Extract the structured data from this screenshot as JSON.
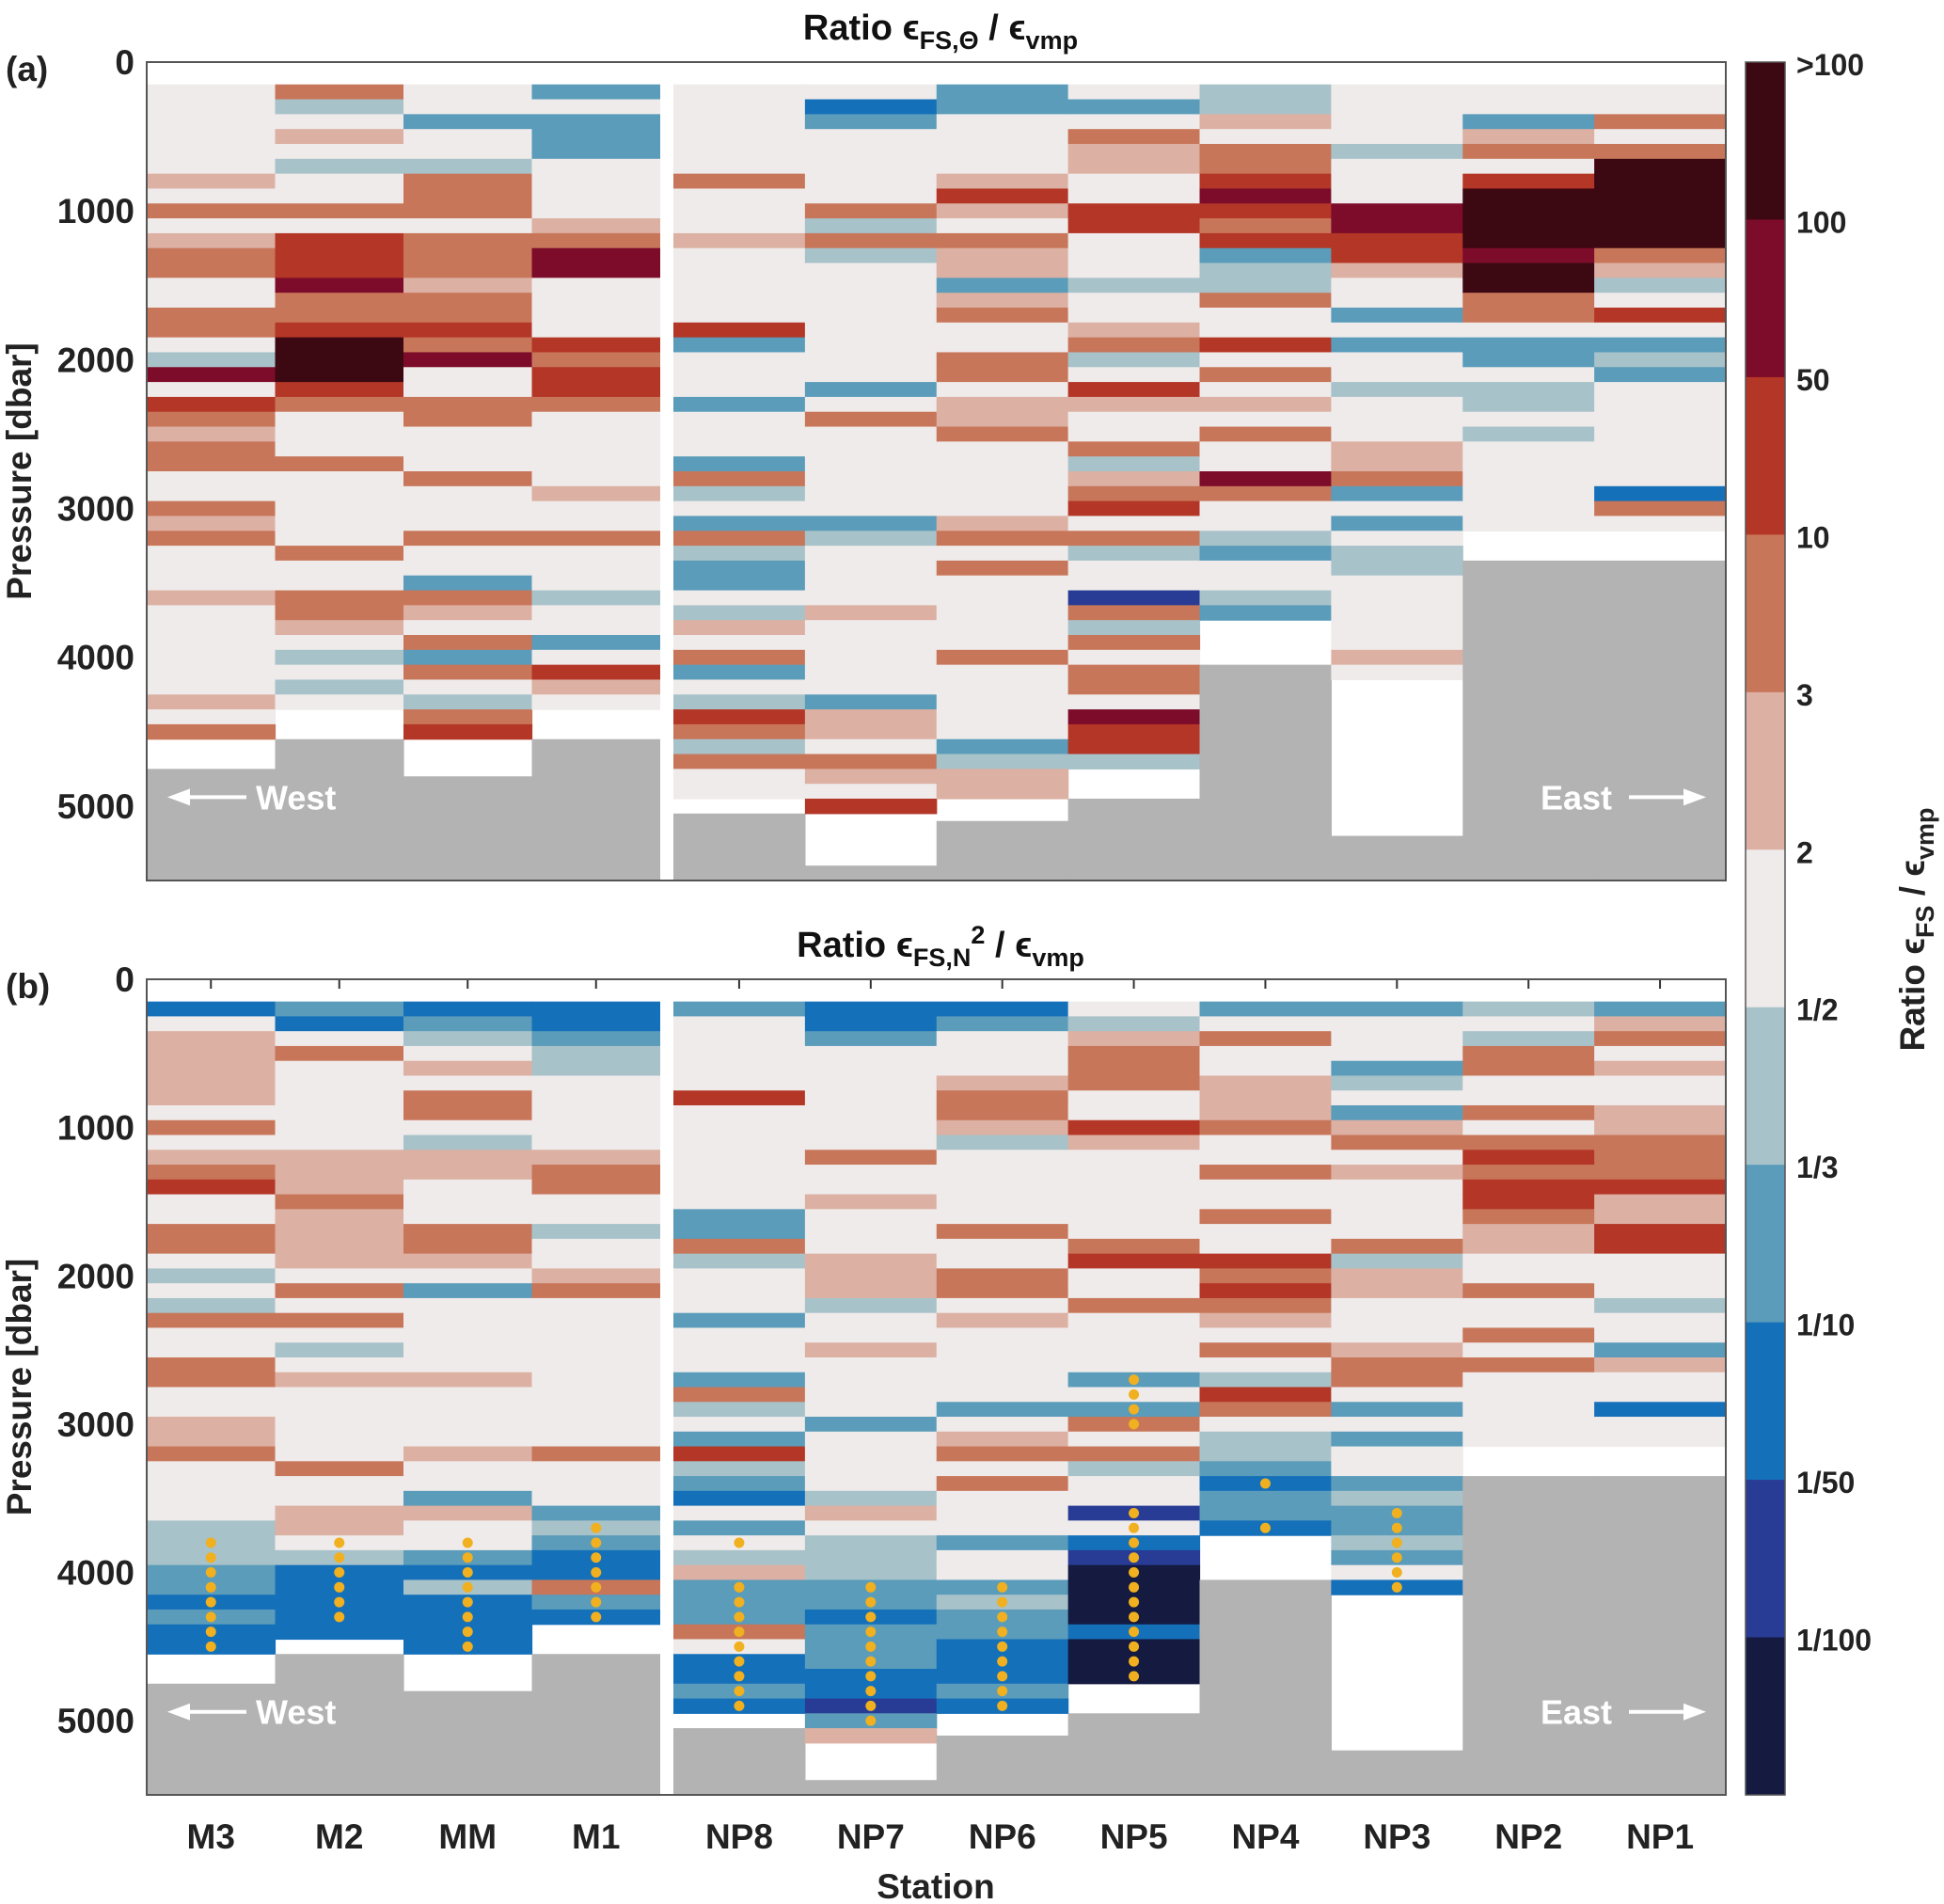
{
  "chart_data": [
    {
      "panel_label": "(a)",
      "title": {
        "prefix": "Ratio ",
        "eps": "ϵ",
        "sub": "FS,Θ",
        "sup": "",
        "slash": " / ",
        "eps2": "ϵ",
        "sub2": "vmp"
      },
      "type": "heatmap",
      "ylabel": "Pressure [dbar]",
      "ylim": [
        0,
        5500
      ],
      "yticks": [
        "0",
        "1000",
        "2000",
        "3000",
        "4000",
        "5000"
      ],
      "bin_start_dbar": 150,
      "bin_size_dbar": 100,
      "annotations": {
        "west": "West",
        "east": "East"
      },
      "stations": [
        {
          "name": "M3",
          "classes": "ffffffgfhfghhffhhfejfihghhffhghfffgffffffgfh",
          "seafloor_dbar": 4750,
          "dots_dbar": []
        },
        {
          "name": "M2",
          "classes": "hefgfeffhfiiijhhikkkihfffhfffffhffhhgfefef",
          "seafloor_dbar": 4550,
          "dots_dbar": []
        },
        {
          "name": "MM",
          "classes": "ffdffehhhfhhhghhihjffhhfffhfffhffdhgfhdhfehi",
          "seafloor_dbar": 4800,
          "dots_dbar": []
        },
        {
          "name": "M1",
          "classes": "dfdddffffghjjffffihiihfffffgffhfffeffdfigf",
          "seafloor_dbar": 4550,
          "dots_dbar": []
        },
        {
          "name": "NP8",
          "classes": "ffffffhfffgfffffidfffdfffdhefdheddfegfhdfeihehff",
          "seafloor_dbar": 5050,
          "dots_dbar": []
        },
        {
          "name": "NP7",
          "classes": "fcdfffffheheffffffffdfhffffffdeffffgfffffdggfhgfi",
          "seafloor_dbar": 5400,
          "dots_dbar": []
        },
        {
          "name": "NP6",
          "classes": "ddffffgigfhggdghffhhfgghfffffghfhfffffhfffffdegg",
          "seafloor_dbar": 5100,
          "dots_dbar": []
        },
        {
          "name": "NP5",
          "classes": "fdfhggffiifffeffghefigffheghifheffbhehfhhfjiie",
          "seafloor_dbar": 4950,
          "dots_dbar": []
        },
        {
          "name": "NP4",
          "classes": "eegfhhijihideehffifhfgfhffjhffedffed",
          "seafloor_dbar": 4050,
          "dots_dbar": []
        },
        {
          "name": "NP3",
          "classes": "ffffefffjjiigffdfdffefffgghdfdfeefffffgf",
          "seafloor_dbar": 5200,
          "dots_dbar": []
        },
        {
          "name": "NP2",
          "classes": "ffdghfikkkkjkkhhfddfeefeffffff",
          "seafloor_dbar": 3350,
          "dots_dbar": []
        },
        {
          "name": "NP1",
          "classes": "ffhfhkkkkkkhgefifdedfffffffchf",
          "seafloor_dbar": 3350,
          "dots_dbar": []
        }
      ]
    },
    {
      "panel_label": "(b)",
      "title": {
        "prefix": "Ratio ",
        "eps": "ϵ",
        "sub": "FS,N",
        "sup": "2",
        "slash": " / ",
        "eps2": "ϵ",
        "sub2": "vmp"
      },
      "type": "heatmap",
      "ylabel": "Pressure [dbar]",
      "xlabel": "Station",
      "ylim": [
        0,
        5500
      ],
      "yticks": [
        "0",
        "1000",
        "2000",
        "3000",
        "4000",
        "5000"
      ],
      "bin_start_dbar": 150,
      "bin_size_dbar": 100,
      "annotations": {
        "west": "West",
        "east": "East"
      },
      "stations": [
        {
          "name": "M3",
          "classes": "cfgggggfhfghiffhhfefehffhhffgghffffeeeddcdcc",
          "seafloor_dbar": 4750,
          "dots_dbar": [
            3800,
            3900,
            4000,
            4100,
            4200,
            4300,
            4400,
            4500
          ]
        },
        {
          "name": "M2",
          "classes": "dcfhffffffggghggggfhfhfefgfffffhffggfeccccc",
          "seafloor_dbar": 4550,
          "dots_dbar": [
            3800,
            3900,
            4000,
            4100,
            4200,
            4300
          ]
        },
        {
          "name": "MM",
          "classes": "cdefgfhhfeggfffhhgfdfffffgffffgffdgffdcecccc",
          "seafloor_dbar": 4800,
          "dots_dbar": [
            3800,
            3900,
            4000,
            4100,
            4200,
            4300,
            4400,
            4500
          ]
        },
        {
          "name": "M1",
          "classes": "ccdeefffffghhffeffghffffffffffhfffdedcchdc",
          "seafloor_dbar": 4550,
          "dots_dbar": [
            3700,
            3800,
            3900,
            4000,
            4100,
            4200,
            4300
          ]
        },
        {
          "name": "NP8",
          "classes": "dfffffifffffffddhefffdfffdhefdiedcfdfegdddhfccdc",
          "seafloor_dbar": 5050,
          "dots_dbar": [
            3800,
            4100,
            4200,
            4300,
            4400,
            4500,
            4600,
            4700,
            4800,
            4900
          ]
        },
        {
          "name": "NP7",
          "classes": "ccdfffffffhffgfffgggeffgffffdffffegfeeeddcdddccbdg",
          "seafloor_dbar": 5400,
          "dots_dbar": [
            4100,
            4200,
            4300,
            4400,
            4500,
            4600,
            4700,
            4800,
            4900,
            5000
          ]
        },
        {
          "name": "NP6",
          "classes": "cdfffghhgefffffhffhhfgfffffdfghfhfffdffdeddcccdc",
          "seafloor_dbar": 5100,
          "dots_dbar": [
            4100,
            4200,
            4300,
            4400,
            4500,
            4600,
            4700,
            4800,
            4900
          ]
        },
        {
          "name": "NP5",
          "classes": "feghhhffigffffffhiffhffffdfdhfheffbfcbaaaacaaa",
          "seafloor_dbar": 4950,
          "dots_dbar": [
            2700,
            2800,
            2900,
            3000,
            3600,
            3700,
            3800,
            3900,
            4000,
            4100,
            4200,
            4300,
            4400,
            4500,
            4600,
            4700
          ]
        },
        {
          "name": "NP4",
          "classes": "dfhffggghffhffhffihihgfhfeihfeedcddc",
          "seafloor_dbar": 4050,
          "dots_dbar": [
            3400,
            3700
          ]
        },
        {
          "name": "NP3",
          "classes": "dfffdefdghfgffffheggfffghhfdfdffdeddedfc",
          "seafloor_dbar": 5200,
          "dots_dbar": [
            3600,
            3700,
            3800,
            3900,
            4000,
            4100
          ]
        },
        {
          "name": "NP2",
          "classes": "efehhffhfhihiihggffhffhfhfffff",
          "seafloor_dbar": 3350,
          "dots_dbar": []
        },
        {
          "name": "NP1",
          "classes": "dghfgffgghhhiggiifffeffdgffcff",
          "seafloor_dbar": 3350,
          "dots_dbar": []
        }
      ]
    }
  ],
  "colorbar": {
    "label": {
      "prefix": "Ratio ",
      "eps": "ϵ",
      "sub": "FS",
      "slash": " / ",
      "eps2": "ϵ",
      "sub2": "vmp"
    },
    "classes": [
      {
        "code": "k",
        "range": ">100",
        "color": "#3c0812"
      },
      {
        "code": "j",
        "range": "50-100",
        "color": "#7d0c2a"
      },
      {
        "code": "i",
        "range": "10-50",
        "color": "#b33626"
      },
      {
        "code": "h",
        "range": "3-10",
        "color": "#c8765a"
      },
      {
        "code": "g",
        "range": "2-3",
        "color": "#dcb0a2"
      },
      {
        "code": "f",
        "range": "1/2-2",
        "color": "#efebea"
      },
      {
        "code": "e",
        "range": "1/3-1/2",
        "color": "#a8c2c9"
      },
      {
        "code": "d",
        "range": "1/10-1/3",
        "color": "#5a9cba"
      },
      {
        "code": "c",
        "range": "1/50-1/10",
        "color": "#1570ba"
      },
      {
        "code": "b",
        "range": "1/100-1/50",
        "color": "#283c96"
      },
      {
        "code": "a",
        "range": "<1/100",
        "color": "#141a40"
      }
    ],
    "tick_labels": [
      ">100",
      "100",
      "50",
      "10",
      "3",
      "2",
      "1/2",
      "1/3",
      "1/10",
      "1/50",
      "1/100"
    ]
  },
  "colors": {
    "seafloor": "#b3b3b3",
    "no_data": "#ffffff",
    "dots": "#f0b020"
  }
}
